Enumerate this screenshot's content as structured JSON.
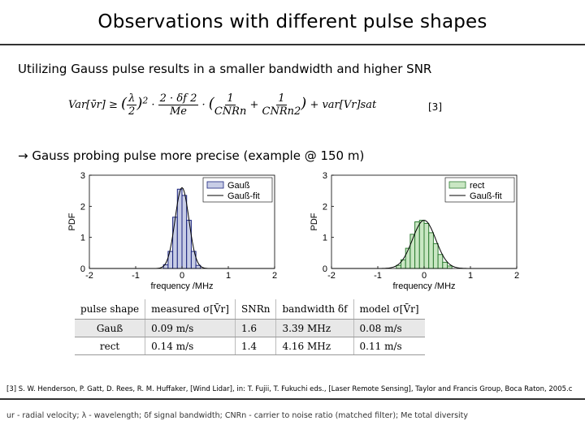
{
  "slide": {
    "title": "Observations with different pulse shapes",
    "subtitle": "Utilizing Gauss pulse results in a smaller bandwidth and higher SNR",
    "equation_ref": "[3]",
    "gauss_note": "→ Gauss probing pulse more precise (example @ 150 m)",
    "citation": "[3] S. W. Henderson, P. Gatt, D. Rees, R. M. Huffaker, [Wind Lidar], in: T. Fujii, T. Fukuchi eds., [Laser Remote Sensing], Taylor and Francis Group, Boca Raton, 2005.c",
    "footer": "ur - radial velocity; λ - wavelength; δf signal bandwidth; CNRn - carrier to noise ratio (matched filter); Me total diversity"
  },
  "equation": {
    "lhs": "Var[v̄r] ≥",
    "lambda_frac": {
      "num": "λ",
      "den": "2"
    },
    "power": "2",
    "dot": "·",
    "df_frac": {
      "num": "2 · δf 2",
      "den": "Me"
    },
    "cnr1_frac": {
      "num": "1",
      "den": "CNRn"
    },
    "plus": "+",
    "cnr2_frac": {
      "num": "1",
      "den": "CNRn2"
    },
    "tail": "+ var[Vr]sat"
  },
  "chart_data": [
    {
      "type": "bar",
      "ylabel": "PDF",
      "xlabel": "frequency /MHz",
      "xlim": [
        -2,
        2
      ],
      "ylim": [
        0,
        3
      ],
      "xticks": [
        "-2",
        "-1",
        "0",
        "1",
        "2"
      ],
      "yticks": [
        "0",
        "1",
        "2",
        "3"
      ],
      "legend_position": "top-right",
      "bar_color": "#c8cde6",
      "bar_edge": "#1a237e",
      "fit_color": "#000000",
      "bar_width": 0.1,
      "series": [
        {
          "name": "Gauß",
          "kind": "bars",
          "x": [
            -0.35,
            -0.25,
            -0.15,
            -0.05,
            0.05,
            0.15,
            0.25,
            0.35
          ],
          "values": [
            0.12,
            0.55,
            1.65,
            2.55,
            2.35,
            1.55,
            0.55,
            0.1
          ]
        },
        {
          "name": "Gauß-fit",
          "kind": "curve",
          "mu": 0.0,
          "sigma": 0.15,
          "amp": 2.6
        }
      ]
    },
    {
      "type": "bar",
      "ylabel": "PDF",
      "xlabel": "frequency /MHz",
      "xlim": [
        -2,
        2
      ],
      "ylim": [
        0,
        3
      ],
      "xticks": [
        "-2",
        "-1",
        "0",
        "1",
        "2"
      ],
      "yticks": [
        "0",
        "1",
        "2",
        "3"
      ],
      "legend_position": "top-right",
      "bar_color": "#c9e7c3",
      "bar_edge": "#2e7d32",
      "fit_color": "#000000",
      "bar_width": 0.1,
      "series": [
        {
          "name": "rect",
          "kind": "bars",
          "x": [
            -0.55,
            -0.45,
            -0.35,
            -0.25,
            -0.15,
            -0.05,
            0.05,
            0.15,
            0.25,
            0.35,
            0.45,
            0.55
          ],
          "values": [
            0.1,
            0.28,
            0.65,
            1.1,
            1.5,
            1.55,
            1.45,
            1.15,
            0.8,
            0.45,
            0.2,
            0.08
          ]
        },
        {
          "name": "Gauß-fit",
          "kind": "curve",
          "mu": 0.0,
          "sigma": 0.25,
          "amp": 1.55
        }
      ]
    }
  ],
  "table": {
    "headers": [
      "pulse shape",
      "measured σ[V̄r]",
      "SNRn",
      "bandwidth δf",
      "model σ[V̄r]"
    ],
    "rows": [
      [
        "Gauß",
        "0.09 m/s",
        "1.6",
        "3.39 MHz",
        "0.08 m/s"
      ],
      [
        "rect",
        "0.14 m/s",
        "1.4",
        "4.16 MHz",
        "0.11 m/s"
      ]
    ]
  }
}
